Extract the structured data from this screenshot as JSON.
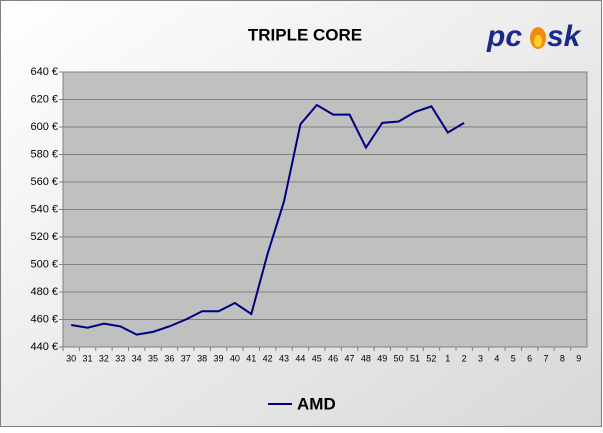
{
  "chart_data": {
    "type": "line",
    "title": "TRIPLE CORE",
    "categories": [
      "30",
      "31",
      "32",
      "33",
      "34",
      "35",
      "36",
      "37",
      "38",
      "39",
      "40",
      "41",
      "42",
      "43",
      "44",
      "45",
      "46",
      "47",
      "48",
      "49",
      "50",
      "51",
      "52",
      "1",
      "2",
      "3",
      "4",
      "5",
      "6",
      "7",
      "8",
      "9"
    ],
    "series": [
      {
        "name": "AMD",
        "color": "#000080",
        "values": [
          456,
          454,
          457,
          455,
          449,
          451,
          455,
          460,
          466,
          466,
          472,
          464,
          508,
          546,
          602,
          616,
          609,
          609,
          585,
          603,
          604,
          611,
          615,
          596,
          603,
          null,
          null,
          null,
          null,
          null,
          null,
          null
        ]
      }
    ],
    "ylim": [
      440,
      640
    ],
    "yticks": [
      {
        "value": 440,
        "label": "440 €"
      },
      {
        "value": 460,
        "label": "460 €"
      },
      {
        "value": 480,
        "label": "480 €"
      },
      {
        "value": 500,
        "label": "500 €"
      },
      {
        "value": 520,
        "label": "520 €"
      },
      {
        "value": 540,
        "label": "540 €"
      },
      {
        "value": 560,
        "label": "560 €"
      },
      {
        "value": 580,
        "label": "580 €"
      },
      {
        "value": 600,
        "label": "600 €"
      },
      {
        "value": 620,
        "label": "620 €"
      },
      {
        "value": 640,
        "label": "640 €"
      }
    ],
    "grid": true,
    "legend": "bottom"
  },
  "logo": {
    "left": "pc",
    "right": "sk"
  }
}
